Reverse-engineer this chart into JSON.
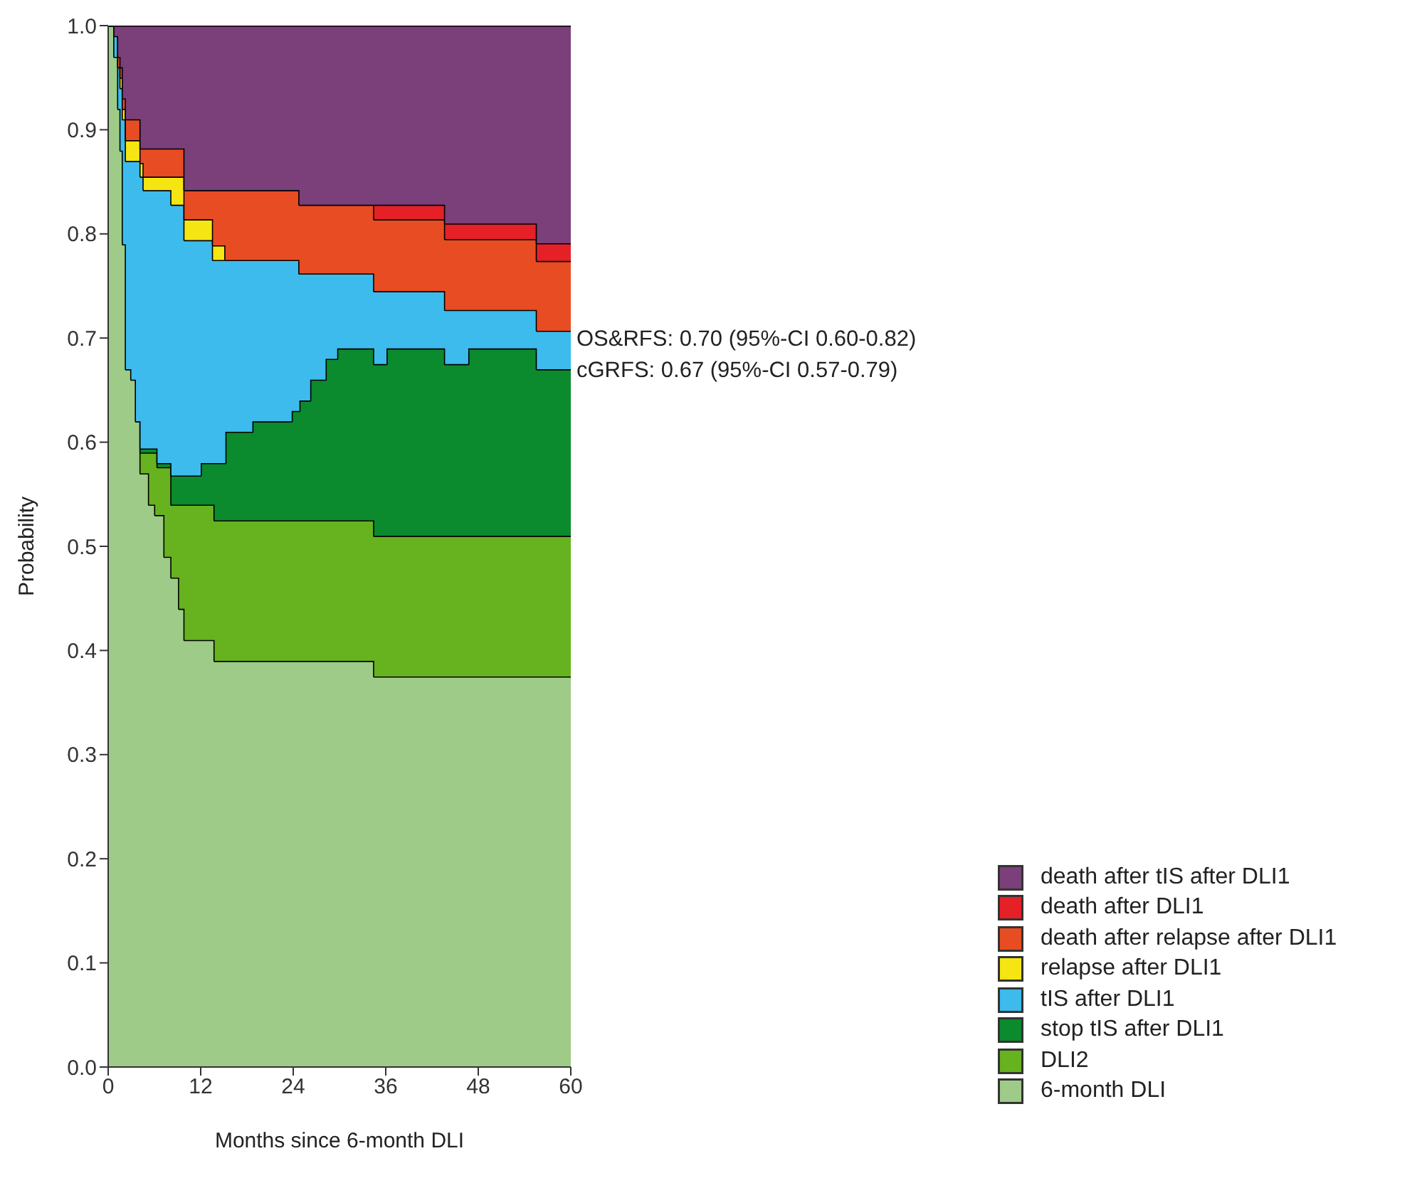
{
  "chart_data": {
    "type": "area",
    "stacked": true,
    "xlabel": "Months since 6-month DLI",
    "ylabel": "Probability",
    "x": [
      0,
      0.8,
      0.8,
      1.3,
      1.3,
      1.6,
      1.6,
      1.9,
      1.9,
      2.3,
      2.3,
      3.0,
      3.0,
      3.6,
      3.6,
      4.2,
      4.2,
      4.6,
      4.6,
      5.3,
      5.3,
      6.1,
      6.1,
      6.4,
      6.4,
      7.3,
      7.3,
      8.2,
      8.2,
      9.2,
      9.2,
      9.9,
      9.9,
      12,
      12,
      13.6,
      13.6,
      13.8,
      13.8,
      15.2,
      15.2,
      18.7,
      18.7,
      23.8,
      23.8,
      24.8,
      24.8,
      26.2,
      26.2,
      28.2,
      28.2,
      29.7,
      29.7,
      34.5,
      34.5,
      36.1,
      36.1,
      43.7,
      43.7,
      46.7,
      46.7,
      55.6,
      55.6,
      60
    ],
    "series": [
      {
        "name": "6-month DLI",
        "color": "#9ecb87",
        "values": [
          1,
          1,
          0.97,
          0.97,
          0.92,
          0.92,
          0.88,
          0.88,
          0.79,
          0.79,
          0.67,
          0.67,
          0.66,
          0.66,
          0.62,
          0.62,
          0.57,
          0.57,
          0.57,
          0.57,
          0.54,
          0.54,
          0.53,
          0.53,
          0.53,
          0.53,
          0.49,
          0.49,
          0.47,
          0.47,
          0.44,
          0.44,
          0.41,
          0.41,
          0.41,
          0.41,
          0.41,
          0.41,
          0.39,
          0.39,
          0.39,
          0.39,
          0.39,
          0.39,
          0.39,
          0.39,
          0.39,
          0.39,
          0.39,
          0.39,
          0.39,
          0.39,
          0.39,
          0.39,
          0.375,
          0.375,
          0.375,
          0.375,
          0.375,
          0.375,
          0.375,
          0.375,
          0.375,
          0.375
        ]
      },
      {
        "name": "DLI2",
        "color": "#66b21f",
        "values": [
          null,
          null,
          null,
          null,
          null,
          null,
          null,
          null,
          null,
          null,
          null,
          null,
          null,
          null,
          null,
          0,
          0.02,
          0.02,
          0.02,
          0.02,
          0.05,
          0.05,
          0.06,
          0.06,
          0.046,
          0.046,
          0.086,
          0.086,
          0.07,
          0.07,
          0.1,
          0.1,
          0.13,
          0.13,
          0.13,
          0.13,
          0.13,
          0.13,
          0.135,
          0.135,
          0.135,
          0.135,
          0.135,
          0.135,
          0.135,
          0.135,
          0.135,
          0.135,
          0.135,
          0.135,
          0.135,
          0.135,
          0.135,
          0.135,
          0.135,
          0.135,
          0.135,
          0.135,
          0.135,
          0.135,
          0.135,
          0.135,
          0.135,
          0.135
        ]
      },
      {
        "name": "stop tIS after DLI1",
        "color": "#0b8a2e",
        "values": [
          null,
          null,
          null,
          null,
          null,
          null,
          null,
          null,
          null,
          null,
          null,
          null,
          null,
          null,
          null,
          0,
          0.004,
          0.004,
          0.004,
          0.004,
          0.004,
          0.004,
          0.004,
          0.004,
          0.004,
          0.004,
          0.004,
          0.004,
          0.028,
          0.028,
          0.028,
          0.028,
          0.028,
          0.028,
          0.04,
          0.04,
          0.04,
          0.04,
          0.055,
          0.055,
          0.085,
          0.085,
          0.095,
          0.095,
          0.105,
          0.105,
          0.115,
          0.115,
          0.135,
          0.135,
          0.155,
          0.155,
          0.165,
          0.165,
          0.165,
          0.165,
          0.18,
          0.18,
          0.165,
          0.165,
          0.18,
          0.18,
          0.16,
          0.16
        ]
      },
      {
        "name": "tIS after DLI1",
        "color": "#3dbbec",
        "values": [
          0,
          0,
          0.02,
          0.02,
          0.04,
          0.04,
          0.06,
          0.06,
          0.12,
          0.12,
          0.2,
          0.2,
          0.21,
          0.21,
          0.25,
          0.25,
          0.261,
          0.261,
          0.248,
          0.248,
          0.248,
          0.248,
          0.248,
          0.248,
          0.262,
          0.262,
          0.262,
          0.262,
          0.26,
          0.26,
          0.26,
          0.26,
          0.226,
          0.226,
          0.214,
          0.214,
          0.195,
          0.195,
          0.195,
          0.195,
          0.165,
          0.165,
          0.155,
          0.155,
          0.145,
          0.145,
          0.122,
          0.122,
          0.102,
          0.102,
          0.082,
          0.082,
          0.072,
          0.072,
          0.07,
          0.07,
          0.055,
          0.055,
          0.052,
          0.052,
          0.037,
          0.037,
          0.037,
          0.037
        ]
      },
      {
        "name": "relapse after DLI1",
        "color": "#f5e512",
        "values": [
          null,
          null,
          null,
          null,
          null,
          0,
          0.01,
          0.01,
          0.01,
          0.01,
          0.02,
          0.02,
          0.02,
          0.02,
          0.02,
          0.02,
          0.013,
          0.013,
          0.013,
          0.013,
          0.013,
          0.013,
          0.013,
          0.013,
          0.013,
          0.013,
          0.013,
          0.013,
          0.027,
          0.027,
          0.027,
          0.027,
          0.02,
          0.02,
          0.02,
          0.02,
          0.014,
          0.014,
          0.014,
          0.014,
          0,
          null,
          null,
          null,
          null,
          null,
          null,
          null,
          null,
          null,
          null,
          null,
          null,
          null,
          null,
          null,
          null,
          null,
          null,
          null,
          null,
          null,
          null,
          null
        ]
      },
      {
        "name": "death after relapse after DLI1",
        "color": "#e84c22",
        "values": [
          null,
          null,
          null,
          0,
          0.01,
          0.01,
          0.01,
          0.01,
          0.01,
          0.01,
          0.02,
          0.02,
          0.02,
          0.02,
          0.02,
          0.02,
          0.014,
          0.014,
          0.027,
          0.027,
          0.027,
          0.027,
          0.027,
          0.027,
          0.027,
          0.027,
          0.027,
          0.027,
          0.027,
          0.027,
          0.027,
          0.027,
          0.028,
          0.028,
          0.028,
          0.028,
          0.053,
          0.053,
          0.053,
          0.053,
          0.067,
          0.067,
          0.067,
          0.067,
          0.067,
          0.067,
          0.066,
          0.066,
          0.066,
          0.066,
          0.066,
          0.066,
          0.066,
          0.066,
          0.069,
          0.069,
          0.069,
          0.069,
          0.068,
          0.068,
          0.068,
          0.068,
          0.067,
          0.067
        ]
      },
      {
        "name": "death after DLI1",
        "color": "#e52127",
        "values": [
          null,
          null,
          null,
          null,
          null,
          null,
          null,
          null,
          null,
          null,
          null,
          null,
          null,
          null,
          null,
          null,
          null,
          null,
          null,
          null,
          null,
          null,
          null,
          null,
          null,
          null,
          null,
          null,
          null,
          null,
          null,
          null,
          null,
          null,
          null,
          null,
          null,
          null,
          null,
          null,
          null,
          null,
          null,
          null,
          null,
          null,
          null,
          null,
          null,
          null,
          null,
          null,
          null,
          0,
          0.014,
          0.014,
          0.014,
          0.014,
          0.015,
          0.015,
          0.015,
          0.015,
          0.017,
          0.017
        ]
      },
      {
        "name": "death after tIS after DLI1",
        "color": "#7b3f7a",
        "values": [
          0,
          0,
          0.01,
          0.01,
          0.03,
          0.03,
          0.04,
          0.04,
          0.07,
          0.07,
          0.09,
          0.09,
          0.09,
          0.09,
          0.09,
          0.09,
          0.118,
          0.118,
          0.118,
          0.118,
          0.118,
          0.118,
          0.118,
          0.118,
          0.118,
          0.118,
          0.118,
          0.118,
          0.118,
          0.118,
          0.118,
          0.118,
          0.158,
          0.158,
          0.158,
          0.158,
          0.158,
          0.158,
          0.158,
          0.158,
          0.158,
          0.158,
          0.158,
          0.158,
          0.158,
          0.158,
          0.172,
          0.172,
          0.172,
          0.172,
          0.172,
          0.172,
          0.172,
          0.172,
          0.172,
          0.172,
          0.172,
          0.172,
          0.19,
          0.19,
          0.19,
          0.19,
          0.209,
          0.209
        ]
      }
    ],
    "xlim": [
      0,
      60
    ],
    "xticks": [
      0,
      12,
      24,
      36,
      48,
      60
    ],
    "ylim": [
      0,
      1
    ],
    "yticks": [
      {
        "value": 0,
        "label": "0.0"
      },
      {
        "value": 0.1,
        "label": "0.1"
      },
      {
        "value": 0.2,
        "label": "0.2"
      },
      {
        "value": 0.3,
        "label": "0.3"
      },
      {
        "value": 0.4,
        "label": "0.4"
      },
      {
        "value": 0.5,
        "label": "0.5"
      },
      {
        "value": 0.6,
        "label": "0.6"
      },
      {
        "value": 0.7,
        "label": "0.7"
      },
      {
        "value": 0.8,
        "label": "0.8"
      },
      {
        "value": 0.9,
        "label": "0.9"
      },
      {
        "value": 1,
        "label": "1.0"
      }
    ],
    "annotations": [
      {
        "text": "OS&RFS: 0.70 (95%-CI 0.60-0.82)",
        "x": 60,
        "y": 0.7
      },
      {
        "text": "cGRFS: 0.67 (95%-CI 0.57-0.79)",
        "x": 60,
        "y": 0.67
      }
    ],
    "legend": "bottom right",
    "grid": false
  }
}
